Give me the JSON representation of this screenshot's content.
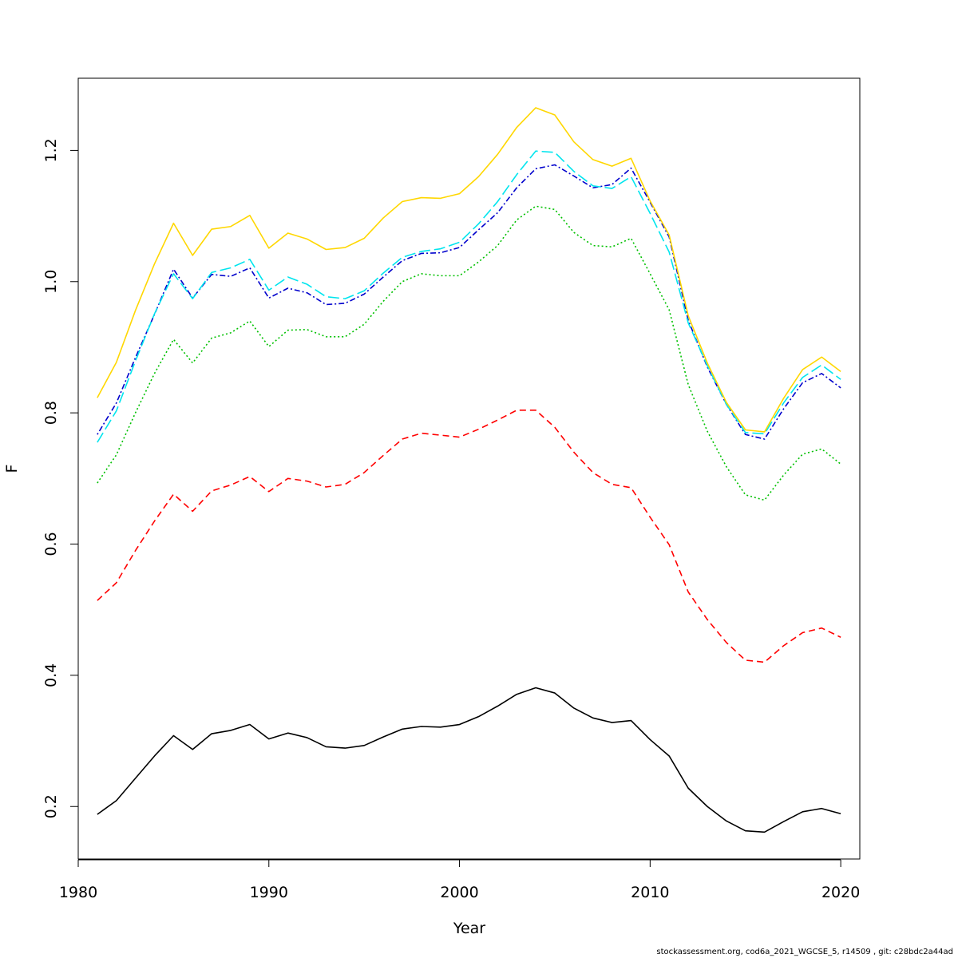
{
  "chart_data": {
    "type": "line",
    "xlabel": "Year",
    "ylabel": "F",
    "xlim": [
      1980,
      2021
    ],
    "ylim": [
      0.12,
      1.31
    ],
    "x_ticks": [
      "1980",
      "1990",
      "2000",
      "2010",
      "2020"
    ],
    "y_ticks": [
      "0.2",
      "0.4",
      "0.6",
      "0.8",
      "1.0",
      "1.2"
    ],
    "grid": false,
    "legend": "none",
    "x": [
      1981,
      1982,
      1983,
      1984,
      1985,
      1986,
      1987,
      1988,
      1989,
      1990,
      1991,
      1992,
      1993,
      1994,
      1995,
      1996,
      1997,
      1998,
      1999,
      2000,
      2001,
      2002,
      2003,
      2004,
      2005,
      2006,
      2007,
      2008,
      2009,
      2010,
      2011,
      2012,
      2013,
      2014,
      2015,
      2016,
      2017,
      2018,
      2019,
      2020
    ],
    "series": [
      {
        "color": "#000000",
        "dash": "solid",
        "values": [
          0.188,
          0.209,
          0.243,
          0.277,
          0.308,
          0.287,
          0.311,
          0.316,
          0.325,
          0.303,
          0.312,
          0.305,
          0.291,
          0.289,
          0.293,
          0.306,
          0.318,
          0.322,
          0.321,
          0.325,
          0.337,
          0.353,
          0.371,
          0.381,
          0.373,
          0.35,
          0.335,
          0.328,
          0.331,
          0.302,
          0.277,
          0.228,
          0.2,
          0.178,
          0.163,
          0.161,
          0.177,
          0.192,
          0.197,
          0.189
        ]
      },
      {
        "color": "#ff0000",
        "dash": "dashed",
        "values": [
          0.514,
          0.541,
          0.59,
          0.635,
          0.676,
          0.65,
          0.681,
          0.69,
          0.703,
          0.68,
          0.7,
          0.696,
          0.687,
          0.691,
          0.709,
          0.735,
          0.76,
          0.769,
          0.766,
          0.763,
          0.775,
          0.789,
          0.804,
          0.804,
          0.778,
          0.74,
          0.709,
          0.691,
          0.686,
          0.641,
          0.599,
          0.527,
          0.485,
          0.45,
          0.423,
          0.42,
          0.445,
          0.465,
          0.472,
          0.458
        ]
      },
      {
        "color": "#00c000",
        "dash": "dotted",
        "values": [
          0.693,
          0.736,
          0.8,
          0.86,
          0.912,
          0.876,
          0.914,
          0.922,
          0.94,
          0.901,
          0.926,
          0.927,
          0.916,
          0.916,
          0.935,
          0.97,
          1.0,
          1.012,
          1.009,
          1.009,
          1.03,
          1.055,
          1.094,
          1.115,
          1.11,
          1.075,
          1.055,
          1.053,
          1.066,
          1.012,
          0.957,
          0.843,
          0.772,
          0.718,
          0.675,
          0.667,
          0.705,
          0.737,
          0.745,
          0.722
        ]
      },
      {
        "color": "#0000cc",
        "dash": "dashdot",
        "values": [
          0.767,
          0.815,
          0.884,
          0.95,
          1.019,
          0.975,
          1.011,
          1.008,
          1.021,
          0.975,
          0.99,
          0.983,
          0.965,
          0.967,
          0.981,
          1.007,
          1.032,
          1.043,
          1.044,
          1.052,
          1.079,
          1.105,
          1.143,
          1.172,
          1.178,
          1.161,
          1.143,
          1.148,
          1.173,
          1.121,
          1.068,
          0.941,
          0.87,
          0.813,
          0.767,
          0.76,
          0.806,
          0.846,
          0.86,
          0.838
        ]
      },
      {
        "color": "#00e5ee",
        "dash": "longdash",
        "values": [
          0.755,
          0.803,
          0.879,
          0.951,
          1.012,
          0.974,
          1.014,
          1.021,
          1.034,
          0.987,
          1.007,
          0.996,
          0.977,
          0.974,
          0.986,
          1.013,
          1.037,
          1.046,
          1.05,
          1.06,
          1.088,
          1.122,
          1.163,
          1.199,
          1.197,
          1.168,
          1.146,
          1.142,
          1.16,
          1.104,
          1.045,
          0.937,
          0.872,
          0.813,
          0.77,
          0.768,
          0.815,
          0.854,
          0.873,
          0.851
        ]
      },
      {
        "color": "#ffd700",
        "dash": "solid",
        "values": [
          0.823,
          0.877,
          0.956,
          1.027,
          1.089,
          1.04,
          1.08,
          1.084,
          1.101,
          1.051,
          1.074,
          1.065,
          1.049,
          1.052,
          1.066,
          1.097,
          1.122,
          1.128,
          1.127,
          1.134,
          1.16,
          1.194,
          1.235,
          1.265,
          1.254,
          1.213,
          1.186,
          1.176,
          1.188,
          1.123,
          1.071,
          0.948,
          0.876,
          0.816,
          0.774,
          0.771,
          0.822,
          0.866,
          0.885,
          0.863
        ]
      }
    ]
  },
  "footer": {
    "text": "stockassessment.org, cod6a_2021_WGCSE_5, r14509 , git: c28bdc2a44ad"
  }
}
